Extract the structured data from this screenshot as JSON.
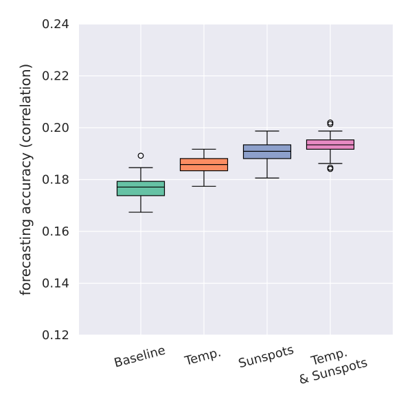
{
  "chart_data": {
    "type": "boxplot",
    "title": "",
    "xlabel": "",
    "ylabel": "forecasting accuracy (correlation)",
    "ylim": [
      0.12,
      0.24
    ],
    "yticks": [
      "0.12",
      "0.14",
      "0.16",
      "0.18",
      "0.20",
      "0.22",
      "0.24"
    ],
    "grid": true,
    "categories": [
      "Baseline",
      "Temp.",
      "Sunspots",
      "Temp. & Sunspots"
    ],
    "category_label_lines": [
      [
        "Baseline"
      ],
      [
        "Temp."
      ],
      [
        "Sunspots"
      ],
      [
        "Temp.",
        "& Sunspots"
      ]
    ],
    "boxes": [
      {
        "name": "Baseline",
        "color": "#66c2a5",
        "whisker_low": 0.1674,
        "q1": 0.1738,
        "median": 0.1771,
        "q3": 0.1793,
        "whisker_high": 0.1846,
        "outliers": [
          0.1892
        ]
      },
      {
        "name": "Temp.",
        "color": "#fc8d62",
        "whisker_low": 0.1774,
        "q1": 0.1834,
        "median": 0.1858,
        "q3": 0.1881,
        "whisker_high": 0.1917,
        "outliers": []
      },
      {
        "name": "Sunspots",
        "color": "#8da0cb",
        "whisker_low": 0.1806,
        "q1": 0.1881,
        "median": 0.1909,
        "q3": 0.1934,
        "whisker_high": 0.1987,
        "outliers": []
      },
      {
        "name": "Temp. & Sunspots",
        "color": "#e78ac3",
        "whisker_low": 0.1862,
        "q1": 0.1917,
        "median": 0.1934,
        "q3": 0.1953,
        "whisker_high": 0.1987,
        "outliers": [
          0.1841,
          0.1846,
          0.2014,
          0.202
        ]
      }
    ]
  },
  "colors": {
    "plot_background": "#eaeaf2",
    "grid": "#ffffff",
    "text": "#262626",
    "box_edge": "#000000"
  }
}
